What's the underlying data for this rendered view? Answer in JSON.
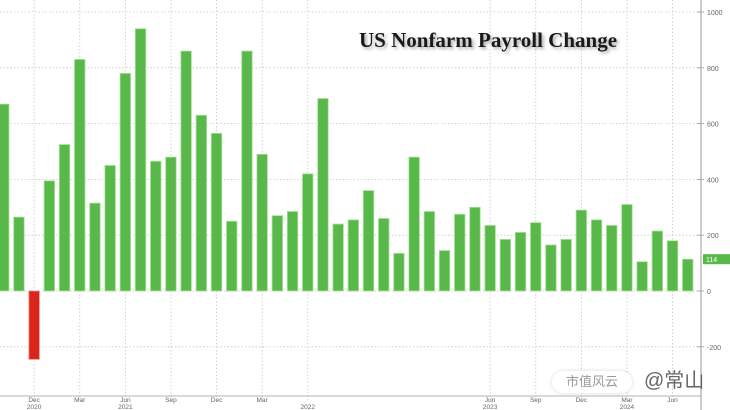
{
  "title": "US Nonfarm Payroll Change",
  "watermark": {
    "badge": "市值风云",
    "handle": "@常山"
  },
  "colors": {
    "positive": "#58b94a",
    "positive_edge": "#a9e29a",
    "negative": "#d9261c",
    "grid": "#c8c8c8",
    "axis": "#9a9a9a",
    "label": "#666666",
    "last_tag": "#58b94a"
  },
  "chart_data": {
    "type": "bar",
    "title": "US Nonfarm Payroll Change",
    "xlabel": "",
    "ylabel": "",
    "ylim": [
      -250,
      1000
    ],
    "yticks": [
      1000,
      800,
      600,
      400,
      200,
      0,
      -200
    ],
    "grid": true,
    "last_value_label": "114",
    "x_tick_labels": [
      {
        "bar": 2,
        "month": "Dec",
        "year": "2020"
      },
      {
        "bar": 5,
        "month": "Mar",
        "year": ""
      },
      {
        "bar": 8,
        "month": "Jun",
        "year": "2021"
      },
      {
        "bar": 11,
        "month": "Sep",
        "year": ""
      },
      {
        "bar": 14,
        "month": "Dec",
        "year": ""
      },
      {
        "bar": 17,
        "month": "Mar",
        "year": ""
      },
      {
        "bar": 20,
        "month": "",
        "year": "2022"
      },
      {
        "bar": 32,
        "month": "Jun",
        "year": "2023"
      },
      {
        "bar": 35,
        "month": "Sep",
        "year": ""
      },
      {
        "bar": 38,
        "month": "Dec",
        "year": ""
      },
      {
        "bar": 41,
        "month": "Mar",
        "year": "2024"
      },
      {
        "bar": 44,
        "month": "Jun",
        "year": ""
      }
    ],
    "values": [
      670,
      265,
      -245,
      395,
      525,
      830,
      315,
      450,
      780,
      940,
      465,
      480,
      860,
      630,
      565,
      250,
      860,
      490,
      270,
      285,
      420,
      690,
      240,
      255,
      360,
      260,
      135,
      480,
      285,
      145,
      275,
      300,
      235,
      185,
      210,
      245,
      165,
      185,
      290,
      255,
      235,
      310,
      105,
      215,
      180,
      114
    ]
  }
}
